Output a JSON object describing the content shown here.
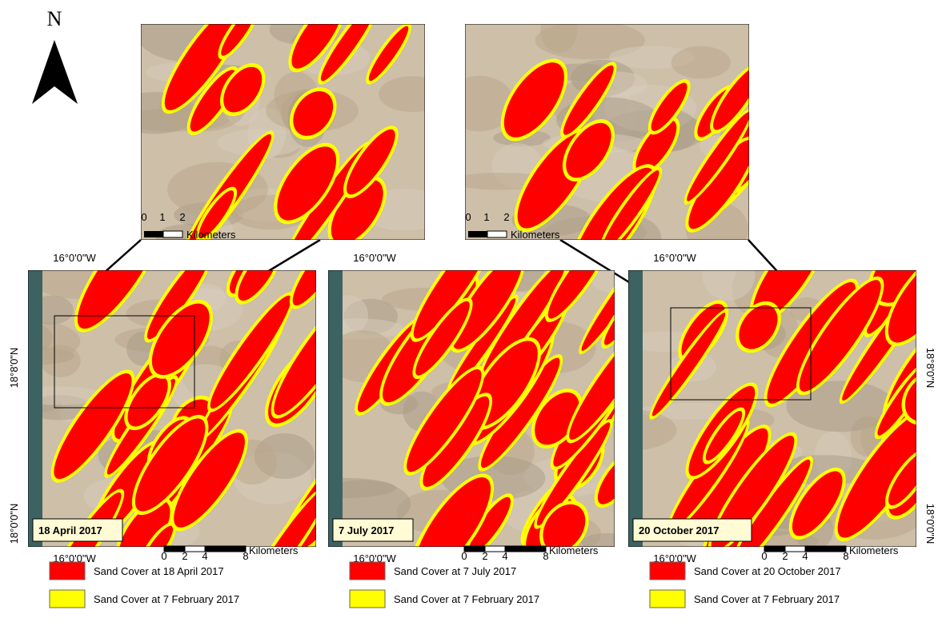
{
  "north_label": "N",
  "insets": [
    {
      "scale": {
        "ticks": [
          "0",
          "1",
          "2"
        ],
        "unit": "Kilometers"
      }
    },
    {
      "scale": {
        "ticks": [
          "0",
          "1",
          "2"
        ],
        "unit": "Kilometers"
      }
    }
  ],
  "panels": [
    {
      "date": "18 April 2017",
      "top_lon": "16°0'0\"W",
      "bottom_lon": "16°0'0\"W",
      "lat_labels": [
        "18°8'0\"N",
        "18°0'0\"N"
      ],
      "scale": {
        "ticks": [
          "0",
          "2",
          "4",
          "8"
        ],
        "unit": "Kilometers"
      },
      "legend": [
        {
          "label": "Sand Cover at 18 April 2017",
          "color": "#ff0000"
        },
        {
          "label": "Sand Cover at 7 February 2017",
          "color": "#ffff00"
        }
      ]
    },
    {
      "date": "7 July 2017",
      "top_lon": "16°0'0\"W",
      "bottom_lon": "16°0'0\"W",
      "scale": {
        "ticks": [
          "0",
          "2",
          "4",
          "8"
        ],
        "unit": "Kilometers"
      },
      "legend": [
        {
          "label": "Sand Cover at 7 July 2017",
          "color": "#ff0000"
        },
        {
          "label": "Sand Cover at 7 February 2017",
          "color": "#ffff00"
        }
      ]
    },
    {
      "date": "20 October 2017",
      "top_lon": "16°0'0\"W",
      "bottom_lon": "16°0'0\"W",
      "lat_labels": [
        "18°8'0\"N",
        "18°0'0\"N"
      ],
      "scale": {
        "ticks": [
          "0",
          "2",
          "4",
          "8"
        ],
        "unit": "Kilometers"
      },
      "legend": [
        {
          "label": "Sand Cover at 20 October 2017",
          "color": "#ff0000"
        },
        {
          "label": "Sand Cover at 7 February 2017",
          "color": "#ffff00"
        }
      ]
    }
  ]
}
